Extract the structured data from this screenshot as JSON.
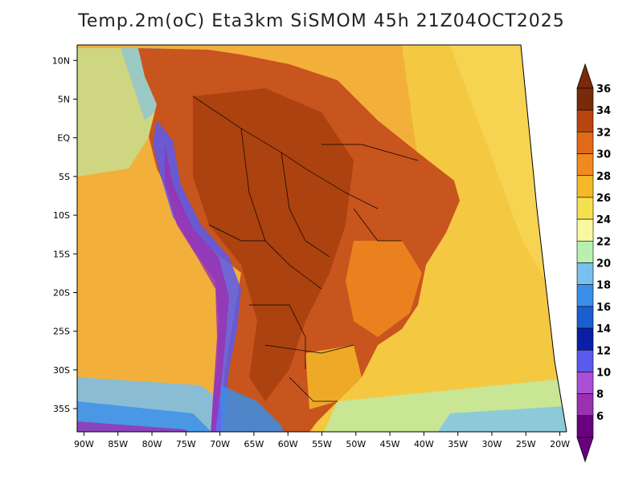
{
  "title": "Temp.2m(oC) Eta3km SiSMOM 45h 21Z04OCT2025",
  "map": {
    "lat_labels": [
      "10N",
      "5N",
      "EQ",
      "5S",
      "10S",
      "15S",
      "20S",
      "25S",
      "30S",
      "35S"
    ],
    "lat_values": [
      10,
      5,
      0,
      -5,
      -10,
      -15,
      -20,
      -25,
      -30,
      -35
    ],
    "lon_labels": [
      "90W",
      "85W",
      "80W",
      "75W",
      "70W",
      "65W",
      "60W",
      "55W",
      "50W",
      "45W",
      "40W",
      "35W",
      "30W",
      "25W",
      "20W"
    ],
    "lon_values": [
      -90,
      -85,
      -80,
      -75,
      -70,
      -65,
      -60,
      -55,
      -50,
      -45,
      -40,
      -35,
      -30,
      -25,
      -20
    ],
    "lat_range": [
      -38,
      12
    ],
    "lon_range": [
      -91,
      -19
    ],
    "ocean_color": "#f5c842",
    "land_color": "#c8541e"
  },
  "colorbar": {
    "unit": "oC",
    "labels": [
      "6",
      "8",
      "10",
      "12",
      "14",
      "16",
      "18",
      "20",
      "22",
      "24",
      "26",
      "28",
      "30",
      "32",
      "34",
      "36"
    ],
    "colors": [
      "#6a0080",
      "#9b30b0",
      "#a84fd6",
      "#5a5aee",
      "#0a1fa8",
      "#1a5fd0",
      "#3a8ee8",
      "#78c0f0",
      "#b8f0b0",
      "#f8f8a0",
      "#f5e050",
      "#f5b828",
      "#f08a1e",
      "#e06a18",
      "#b84510",
      "#7a2a08"
    ]
  }
}
